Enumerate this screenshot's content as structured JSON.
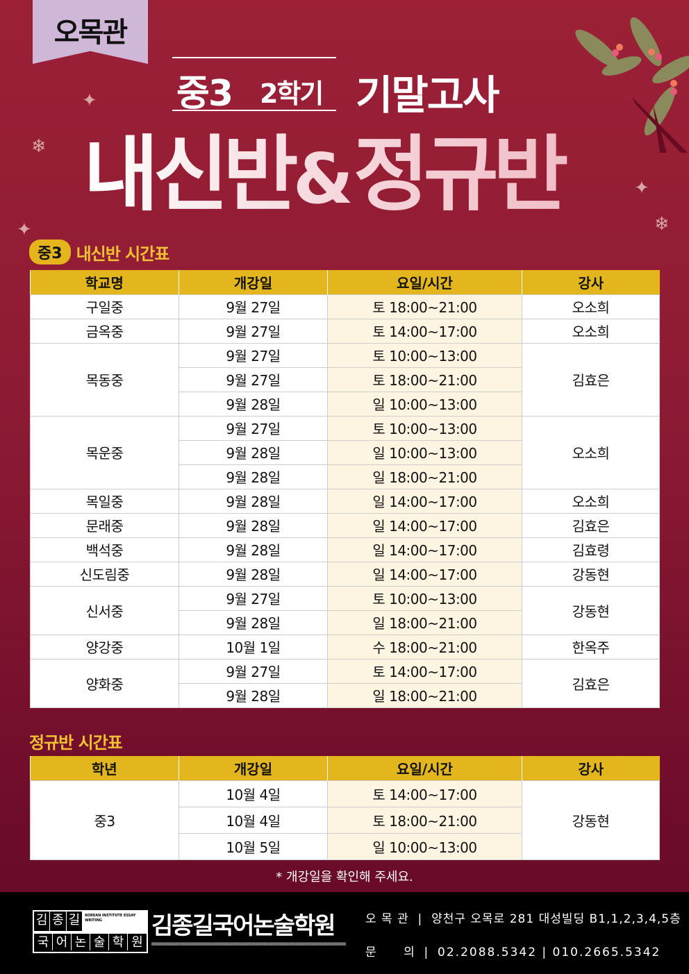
{
  "branch_tag": "오목관",
  "headline": {
    "grade": "중3",
    "semester": "2학기",
    "exam": "기말고사"
  },
  "main_title": {
    "part1": "내신반",
    "amp": "&",
    "part2": "정규반"
  },
  "naesin": {
    "badge": "중3",
    "title": "내신반 시간표",
    "headers": [
      "학교명",
      "개강일",
      "요일/시간",
      "강사"
    ],
    "schools": [
      {
        "name": "구일중",
        "teacher": "오소희",
        "sessions": [
          {
            "date": "9월 27일",
            "time": "토 18:00~21:00"
          }
        ]
      },
      {
        "name": "금옥중",
        "teacher": "오소희",
        "sessions": [
          {
            "date": "9월 27일",
            "time": "토 14:00~17:00"
          }
        ]
      },
      {
        "name": "목동중",
        "teacher": "김효은",
        "sessions": [
          {
            "date": "9월 27일",
            "time": "토 10:00~13:00"
          },
          {
            "date": "9월 27일",
            "time": "토 18:00~21:00"
          },
          {
            "date": "9월 28일",
            "time": "일 10:00~13:00"
          }
        ]
      },
      {
        "name": "목운중",
        "teacher": "오소희",
        "sessions": [
          {
            "date": "9월 27일",
            "time": "토 10:00~13:00"
          },
          {
            "date": "9월 28일",
            "time": "일 10:00~13:00"
          },
          {
            "date": "9월 28일",
            "time": "일 18:00~21:00"
          }
        ]
      },
      {
        "name": "목일중",
        "teacher": "오소희",
        "sessions": [
          {
            "date": "9월 28일",
            "time": "일 14:00~17:00"
          }
        ]
      },
      {
        "name": "문래중",
        "teacher": "김효은",
        "sessions": [
          {
            "date": "9월 28일",
            "time": "일 14:00~17:00"
          }
        ]
      },
      {
        "name": "백석중",
        "teacher": "김효령",
        "sessions": [
          {
            "date": "9월 28일",
            "time": "일 14:00~17:00"
          }
        ]
      },
      {
        "name": "신도림중",
        "teacher": "강동현",
        "sessions": [
          {
            "date": "9월 28일",
            "time": "일 14:00~17:00"
          }
        ]
      },
      {
        "name": "신서중",
        "teacher": "강동현",
        "sessions": [
          {
            "date": "9월 27일",
            "time": "토 10:00~13:00"
          },
          {
            "date": "9월 28일",
            "time": "일 18:00~21:00"
          }
        ]
      },
      {
        "name": "양강중",
        "teacher": "한옥주",
        "sessions": [
          {
            "date": "10월 1일",
            "time": "수 18:00~21:00"
          }
        ]
      },
      {
        "name": "양화중",
        "teacher": "김효은",
        "sessions": [
          {
            "date": "9월 27일",
            "time": "토 14:00~17:00"
          },
          {
            "date": "9월 28일",
            "time": "일 18:00~21:00"
          }
        ]
      }
    ]
  },
  "regular": {
    "title": "정규반 시간표",
    "headers": [
      "학년",
      "개강일",
      "요일/시간",
      "강사"
    ],
    "schools": [
      {
        "name": "중3",
        "teacher": "강동현",
        "sessions": [
          {
            "date": "10월 4일",
            "time": "토 14:00~17:00"
          },
          {
            "date": "10월 4일",
            "time": "토 18:00~21:00"
          },
          {
            "date": "10월 5일",
            "time": "일 10:00~13:00"
          }
        ]
      }
    ]
  },
  "note": "* 개강일을 확인해 주세요.",
  "footer": {
    "logo_row1": [
      "김",
      "종",
      "길"
    ],
    "logo_row2": [
      "국",
      "어",
      "논",
      "술",
      "학",
      "원"
    ],
    "logo_en": "KOREAN INSTITUTE ESSAY WRITING",
    "brand": "김종길국어논술학원",
    "branch_label": "오 목 관",
    "address": "양천구 오목로 281 대성빌딩 B1,1,2,3,4,5층",
    "contact_label": "문      의",
    "phones": "02.2088.5342 | 010.2665.5342"
  },
  "colors": {
    "background": "#8e1b34",
    "header_yellow": "#e3b61d",
    "tag_lavender": "#cfb7d7",
    "time_cell": "#fdf4e1"
  }
}
